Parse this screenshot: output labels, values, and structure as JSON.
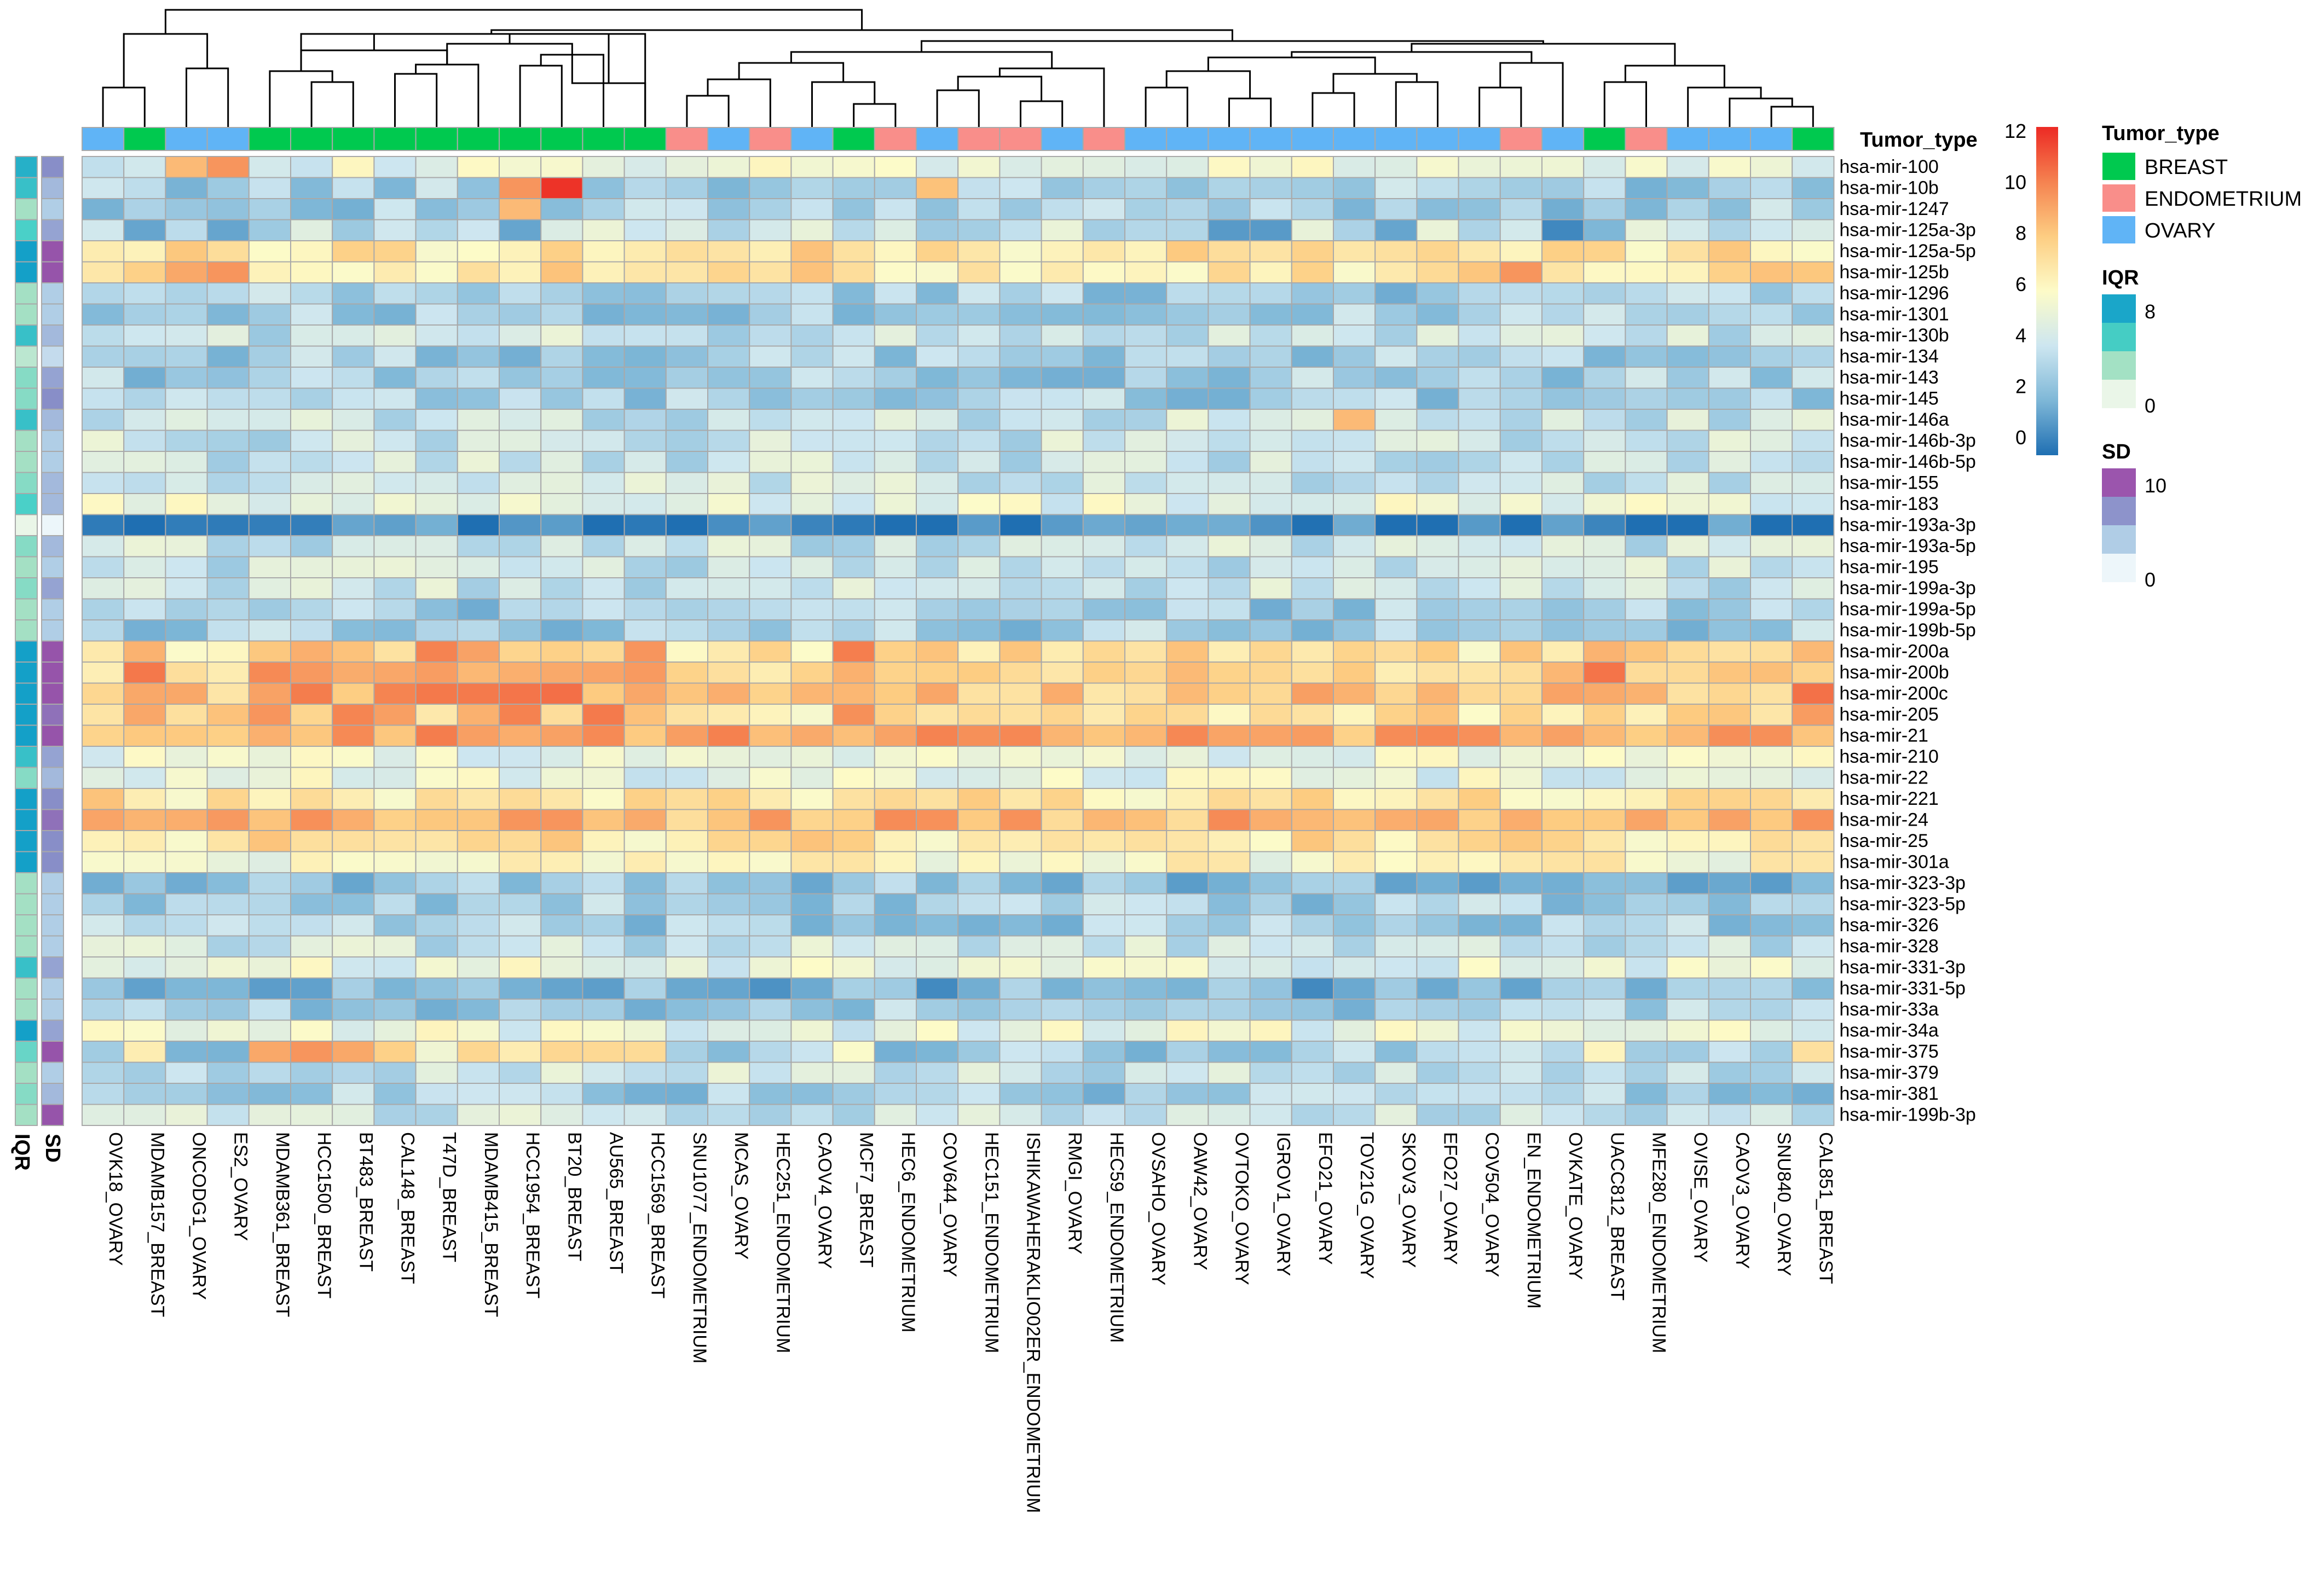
{
  "chart_data": {
    "type": "heatmap",
    "title": "",
    "annotation_title": "Tumor_type",
    "columns": [
      "OVK18_OVARY",
      "MDAMB157_BREAST",
      "ONCODG1_OVARY",
      "ES2_OVARY",
      "MDAMB361_BREAST",
      "HCC1500_BREAST",
      "BT483_BREAST",
      "CAL148_BREAST",
      "T47D_BREAST",
      "MDAMB415_BREAST",
      "HCC1954_BREAST",
      "BT20_BREAST",
      "AU565_BREAST",
      "HCC1569_BREAST",
      "SNU1077_ENDOMETRIUM",
      "MCAS_OVARY",
      "HEC251_ENDOMETRIUM",
      "CAOV4_OVARY",
      "MCF7_BREAST",
      "HEC6_ENDOMETRIUM",
      "COV644_OVARY",
      "HEC151_ENDOMETRIUM",
      "ISHIKAWAHERAKLIO02ER_ENDOMETRIUM",
      "RMGI_OVARY",
      "HEC59_ENDOMETRIUM",
      "OVSAHO_OVARY",
      "OAW42_OVARY",
      "OVTOKO_OVARY",
      "IGROV1_OVARY",
      "EFO21_OVARY",
      "TOV21G_OVARY",
      "SKOV3_OVARY",
      "EFO27_OVARY",
      "COV504_OVARY",
      "EN_ENDOMETRIUM",
      "OVKATE_OVARY",
      "UACC812_BREAST",
      "MFE280_ENDOMETRIUM",
      "OVISE_OVARY",
      "CAOV3_OVARY",
      "SNU840_OVARY",
      "CAL851_BREAST"
    ],
    "column_types": [
      "OVARY",
      "BREAST",
      "OVARY",
      "OVARY",
      "BREAST",
      "BREAST",
      "BREAST",
      "BREAST",
      "BREAST",
      "BREAST",
      "BREAST",
      "BREAST",
      "BREAST",
      "BREAST",
      "ENDOMETRIUM",
      "OVARY",
      "ENDOMETRIUM",
      "OVARY",
      "BREAST",
      "ENDOMETRIUM",
      "OVARY",
      "ENDOMETRIUM",
      "ENDOMETRIUM",
      "OVARY",
      "ENDOMETRIUM",
      "OVARY",
      "OVARY",
      "OVARY",
      "OVARY",
      "OVARY",
      "OVARY",
      "OVARY",
      "OVARY",
      "OVARY",
      "ENDOMETRIUM",
      "OVARY",
      "BREAST",
      "ENDOMETRIUM",
      "OVARY",
      "OVARY",
      "OVARY",
      "BREAST"
    ],
    "rows": [
      "hsa-mir-100",
      "hsa-mir-10b",
      "hsa-mir-1247",
      "hsa-mir-125a-3p",
      "hsa-mir-125a-5p",
      "hsa-mir-125b",
      "hsa-mir-1296",
      "hsa-mir-1301",
      "hsa-mir-130b",
      "hsa-mir-134",
      "hsa-mir-143",
      "hsa-mir-145",
      "hsa-mir-146a",
      "hsa-mir-146b-3p",
      "hsa-mir-146b-5p",
      "hsa-mir-155",
      "hsa-mir-183",
      "hsa-mir-193a-3p",
      "hsa-mir-193a-5p",
      "hsa-mir-195",
      "hsa-mir-199a-3p",
      "hsa-mir-199a-5p",
      "hsa-mir-199b-5p",
      "hsa-mir-200a",
      "hsa-mir-200b",
      "hsa-mir-200c",
      "hsa-mir-205",
      "hsa-mir-21",
      "hsa-mir-210",
      "hsa-mir-22",
      "hsa-mir-221",
      "hsa-mir-24",
      "hsa-mir-25",
      "hsa-mir-301a",
      "hsa-mir-323-3p",
      "hsa-mir-323-5p",
      "hsa-mir-326",
      "hsa-mir-328",
      "hsa-mir-331-3p",
      "hsa-mir-331-5p",
      "hsa-mir-33a",
      "hsa-mir-34a",
      "hsa-mir-375",
      "hsa-mir-379",
      "hsa-mir-381",
      "hsa-mir-199b-3p"
    ],
    "row_base": [
      5,
      3,
      3,
      4,
      7,
      7,
      3,
      3,
      4,
      3,
      3,
      3,
      4,
      4,
      4,
      4,
      5,
      0.5,
      4,
      4,
      4,
      3,
      3,
      7,
      7.5,
      8,
      7,
      9,
      5,
      5,
      7,
      8.5,
      7,
      6,
      2.5,
      3,
      3,
      4,
      5,
      2,
      3,
      5,
      3,
      4,
      3,
      4
    ],
    "row_iqr": [
      8,
      7,
      3,
      6,
      9,
      9,
      3,
      3,
      7,
      2,
      4,
      4,
      7,
      3,
      3,
      4,
      6,
      0,
      4,
      3,
      4,
      3,
      3,
      9,
      9,
      9,
      9,
      9,
      7,
      4,
      9,
      9,
      9,
      9,
      3,
      3,
      3,
      3,
      7,
      3,
      3,
      9,
      5,
      3,
      4,
      3
    ],
    "row_sd": [
      6,
      4,
      3,
      5,
      8,
      8,
      3,
      3,
      4,
      2,
      5,
      6,
      4,
      3,
      3,
      4,
      4,
      0,
      4,
      3,
      5,
      3,
      3,
      8,
      8,
      8,
      7,
      8,
      5,
      4,
      6,
      7,
      6,
      6,
      3,
      3,
      3,
      3,
      5,
      3,
      3,
      5,
      8,
      3,
      4,
      8
    ],
    "overrides": [
      [
        1,
        11,
        11.8
      ],
      [
        1,
        10,
        9.5
      ],
      [
        2,
        10,
        8.5
      ],
      [
        1,
        20,
        8.3
      ],
      [
        0,
        3,
        9.5
      ],
      [
        0,
        2,
        8.5
      ],
      [
        5,
        2,
        9
      ],
      [
        5,
        3,
        9.5
      ],
      [
        3,
        1,
        1.5
      ],
      [
        3,
        3,
        1.5
      ],
      [
        3,
        10,
        1.5
      ],
      [
        3,
        27,
        1.2
      ],
      [
        3,
        28,
        1.2
      ],
      [
        3,
        31,
        1.5
      ],
      [
        3,
        35,
        0.7
      ],
      [
        3,
        36,
        2
      ],
      [
        10,
        15,
        2.5
      ],
      [
        39,
        2,
        2
      ],
      [
        39,
        3,
        2
      ],
      [
        39,
        15,
        1.5
      ],
      [
        42,
        4,
        9
      ],
      [
        42,
        5,
        9.5
      ],
      [
        42,
        6,
        9
      ],
      [
        12,
        30,
        8.5
      ],
      [
        26,
        10,
        10
      ],
      [
        26,
        4,
        9.5
      ],
      [
        5,
        34,
        9.5
      ]
    ],
    "legend": {
      "title": "Tumor_type",
      "entries": [
        "BREAST",
        "ENDOMETRIUM",
        "OVARY"
      ],
      "colors": {
        "BREAST": "#00C94F",
        "ENDOMETRIUM": "#F98E8A",
        "OVARY": "#60B4F6"
      }
    },
    "colorbar": {
      "min": 0,
      "max": 12,
      "ticks": [
        "12",
        "10",
        "8",
        "6",
        "4",
        "2",
        "0"
      ]
    },
    "iqr_legend": {
      "title": "IQR",
      "ticks": [
        "8",
        "0"
      ]
    },
    "sd_legend": {
      "title": "SD",
      "ticks": [
        "10",
        "0"
      ]
    },
    "side_labels": {
      "iqr": "IQR",
      "sd": "SD"
    },
    "palette": {
      "low": "#1f6fb2",
      "mid": "#fdfbc5",
      "high": "#ed2c26"
    }
  }
}
